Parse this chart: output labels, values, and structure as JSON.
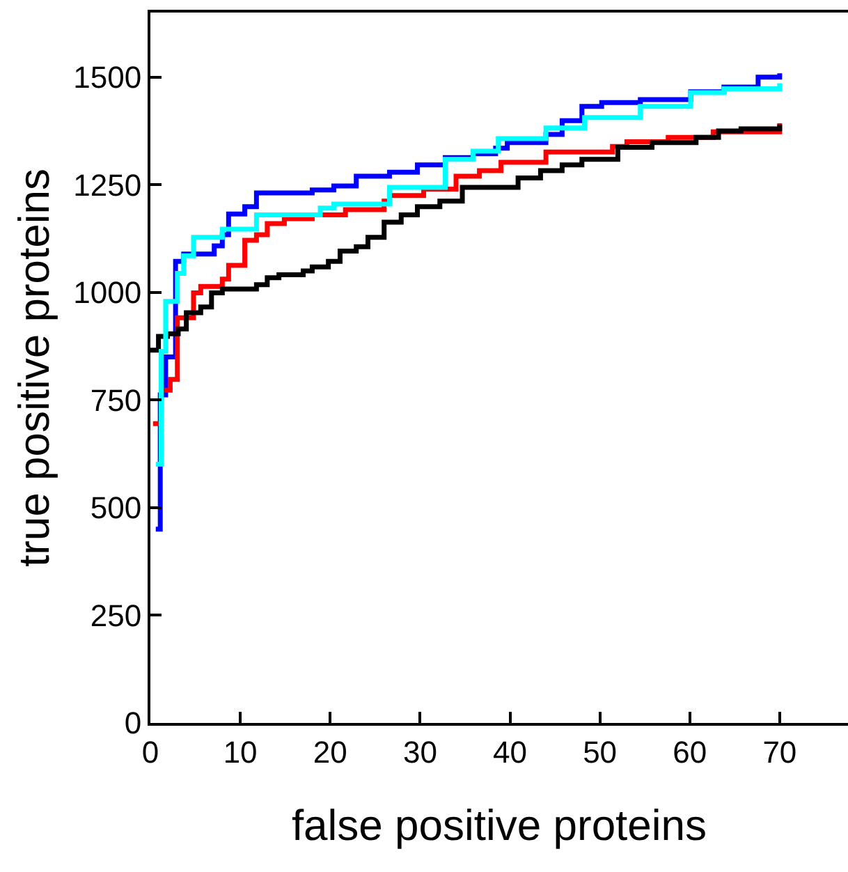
{
  "chart_data": {
    "type": "step",
    "xlabel": "false positive proteins",
    "ylabel": "true positive proteins",
    "xlim": [
      0,
      77.6
    ],
    "ylim": [
      0,
      1650
    ],
    "xticks": [
      0,
      10,
      20,
      30,
      40,
      50,
      60,
      70
    ],
    "yticks": [
      0,
      250,
      500,
      750,
      1000,
      1250,
      1500
    ],
    "line_style": "solid",
    "marker": "none",
    "series": [
      {
        "color": "#0000ff",
        "x": [
          0.6,
          1.1,
          1.7,
          2.8,
          3.7,
          7.1,
          8,
          8.7,
          10.5,
          11.8,
          18,
          20.4,
          22.9,
          26.6,
          29.7,
          32.8,
          35.9,
          38.4,
          39.7,
          44,
          45.8,
          48,
          50.2,
          54.5,
          60.1,
          63.8,
          67.6,
          70
        ],
        "values": [
          450,
          762,
          850,
          1072,
          1089,
          1108,
          1134,
          1182,
          1199,
          1231,
          1238,
          1247,
          1270,
          1279,
          1296,
          1313,
          1322,
          1335,
          1348,
          1367,
          1399,
          1432,
          1441,
          1448,
          1466,
          1477,
          1500,
          1509
        ]
      },
      {
        "color": "#ff0000",
        "x": [
          0.3,
          1.2,
          2.2,
          3,
          4.8,
          5.6,
          8,
          8.7,
          10.5,
          11.8,
          13,
          14.9,
          18,
          21.7,
          26,
          26.6,
          30.4,
          34,
          36.6,
          39,
          44,
          51.4,
          53,
          57.6,
          62.6,
          70
        ],
        "values": [
          695,
          773,
          798,
          941,
          999,
          1014,
          1031,
          1063,
          1121,
          1134,
          1160,
          1171,
          1180,
          1192,
          1212,
          1225,
          1240,
          1270,
          1283,
          1302,
          1326,
          1339,
          1350,
          1360,
          1373,
          1393
        ]
      },
      {
        "color": "#000000",
        "x": [
          0,
          0.9,
          1.9,
          3.1,
          4,
          5.6,
          6.8,
          8,
          11.8,
          13,
          14.3,
          17,
          18,
          19.8,
          21.1,
          22.9,
          24.2,
          26,
          27.9,
          29.7,
          32.2,
          34.7,
          40.9,
          43.4,
          45.8,
          48,
          52,
          55.8,
          60.7,
          63.2,
          65.7,
          70
        ],
        "values": [
          866,
          898,
          904,
          915,
          953,
          966,
          999,
          1008,
          1018,
          1034,
          1041,
          1050,
          1059,
          1072,
          1096,
          1106,
          1128,
          1163,
          1180,
          1199,
          1212,
          1244,
          1266,
          1283,
          1296,
          1309,
          1337,
          1348,
          1360,
          1375,
          1380,
          1390
        ]
      },
      {
        "color": "#00ffff",
        "x": [
          0.6,
          1.2,
          1.7,
          3,
          3.7,
          4.8,
          8,
          11.8,
          18.9,
          20.4,
          26.6,
          32.8,
          35.9,
          38.7,
          44,
          48.3,
          54.5,
          60.1,
          63.8,
          70
        ],
        "values": [
          601,
          863,
          979,
          1044,
          1085,
          1128,
          1147,
          1180,
          1196,
          1205,
          1244,
          1309,
          1328,
          1357,
          1382,
          1406,
          1432,
          1464,
          1473,
          1486
        ]
      }
    ]
  }
}
